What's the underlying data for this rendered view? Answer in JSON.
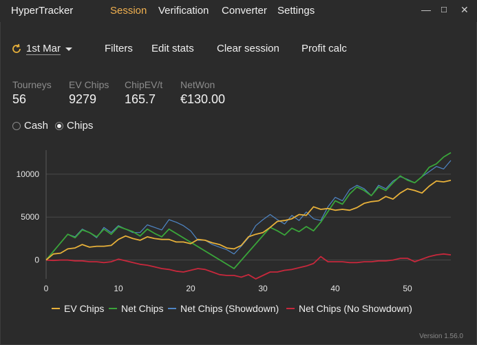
{
  "app": {
    "title": "HyperTracker",
    "version": "Version 1.56.0"
  },
  "menu": {
    "session": "Session",
    "verification": "Verification",
    "converter": "Converter",
    "settings": "Settings"
  },
  "window": {
    "minimize": "—",
    "maximize": "☐",
    "close": "✕"
  },
  "toolbar": {
    "date": "1st Mar",
    "filters": "Filters",
    "edit_stats": "Edit stats",
    "clear_session": "Clear session",
    "profit_calc": "Profit calc"
  },
  "stats": [
    {
      "label": "Tourneys",
      "value": "56"
    },
    {
      "label": "EV Chips",
      "value": "9279"
    },
    {
      "label": "ChipEV/t",
      "value": "165.7"
    },
    {
      "label": "NetWon",
      "value": "€130.00"
    }
  ],
  "mode": {
    "options": [
      "Cash",
      "Chips"
    ],
    "selected": "Chips"
  },
  "colors": {
    "ev": "#e8b13a",
    "net": "#3aa53a",
    "showdown": "#4f86c6",
    "noshowdown": "#c8283c",
    "accent": "#f0b050"
  },
  "chart_data": {
    "type": "line",
    "xlim": [
      0,
      56
    ],
    "ylim": [
      -2200,
      12800
    ],
    "xticks": [
      0,
      10,
      20,
      30,
      40,
      50
    ],
    "yticks": [
      0,
      5000,
      10000
    ],
    "ytick_labels": [
      "0",
      "5000",
      "10000"
    ],
    "grid": true,
    "legend_position": "bottom",
    "series": [
      {
        "name": "EV Chips",
        "color": "#e8b13a",
        "points": [
          [
            0,
            0
          ],
          [
            1,
            700
          ],
          [
            2,
            800
          ],
          [
            3,
            1300
          ],
          [
            4,
            1400
          ],
          [
            5,
            1800
          ],
          [
            6,
            1500
          ],
          [
            7,
            1600
          ],
          [
            8,
            1600
          ],
          [
            9,
            1700
          ],
          [
            10,
            2400
          ],
          [
            11,
            2800
          ],
          [
            12,
            2500
          ],
          [
            13,
            2300
          ],
          [
            14,
            2700
          ],
          [
            15,
            2500
          ],
          [
            16,
            2400
          ],
          [
            17,
            2400
          ],
          [
            18,
            2100
          ],
          [
            19,
            2100
          ],
          [
            20,
            1900
          ],
          [
            21,
            2400
          ],
          [
            22,
            2300
          ],
          [
            23,
            2000
          ],
          [
            24,
            1800
          ],
          [
            25,
            1400
          ],
          [
            26,
            1300
          ],
          [
            27,
            1700
          ],
          [
            28,
            2700
          ],
          [
            29,
            3000
          ],
          [
            30,
            3200
          ],
          [
            31,
            3800
          ],
          [
            32,
            4500
          ],
          [
            33,
            4600
          ],
          [
            34,
            4800
          ],
          [
            35,
            5300
          ],
          [
            36,
            5200
          ],
          [
            37,
            6200
          ],
          [
            38,
            5900
          ],
          [
            39,
            6000
          ],
          [
            40,
            5800
          ],
          [
            41,
            5900
          ],
          [
            42,
            5800
          ],
          [
            43,
            6100
          ],
          [
            44,
            6600
          ],
          [
            45,
            6800
          ],
          [
            46,
            6900
          ],
          [
            47,
            7400
          ],
          [
            48,
            7100
          ],
          [
            49,
            7800
          ],
          [
            50,
            8300
          ],
          [
            51,
            8100
          ],
          [
            52,
            7800
          ],
          [
            53,
            8600
          ],
          [
            54,
            9200
          ],
          [
            55,
            9100
          ],
          [
            56,
            9279
          ]
        ]
      },
      {
        "name": "Net Chips",
        "color": "#3aa53a",
        "points": [
          [
            0,
            0
          ],
          [
            3,
            3000
          ],
          [
            4,
            2600
          ],
          [
            5,
            3500
          ],
          [
            6,
            3200
          ],
          [
            7,
            2700
          ],
          [
            8,
            3600
          ],
          [
            9,
            3000
          ],
          [
            10,
            3900
          ],
          [
            12,
            3300
          ],
          [
            13,
            2800
          ],
          [
            14,
            3600
          ],
          [
            15,
            3100
          ],
          [
            16,
            2700
          ],
          [
            17,
            3600
          ],
          [
            26,
            -1000
          ],
          [
            31,
            3800
          ],
          [
            32,
            3400
          ],
          [
            33,
            2900
          ],
          [
            34,
            3700
          ],
          [
            35,
            3300
          ],
          [
            36,
            3900
          ],
          [
            37,
            3400
          ],
          [
            38,
            4400
          ],
          [
            40,
            6900
          ],
          [
            41,
            6500
          ],
          [
            42,
            7700
          ],
          [
            43,
            8500
          ],
          [
            44,
            8100
          ],
          [
            45,
            7500
          ],
          [
            46,
            8500
          ],
          [
            47,
            8100
          ],
          [
            48,
            9000
          ],
          [
            49,
            9800
          ],
          [
            50,
            9300
          ],
          [
            51,
            9000
          ],
          [
            52,
            9700
          ],
          [
            53,
            10800
          ],
          [
            54,
            11200
          ],
          [
            55,
            12000
          ],
          [
            56,
            12500
          ]
        ]
      },
      {
        "name": "Net Chips (Showdown)",
        "color": "#4f86c6",
        "points": [
          [
            0,
            0
          ],
          [
            3,
            3000
          ],
          [
            4,
            2700
          ],
          [
            5,
            3600
          ],
          [
            6,
            3200
          ],
          [
            7,
            2600
          ],
          [
            8,
            3800
          ],
          [
            9,
            3200
          ],
          [
            10,
            4000
          ],
          [
            11,
            3600
          ],
          [
            12,
            3200
          ],
          [
            13,
            3200
          ],
          [
            14,
            4100
          ],
          [
            15,
            3800
          ],
          [
            16,
            3500
          ],
          [
            17,
            4700
          ],
          [
            18,
            4400
          ],
          [
            19,
            4000
          ],
          [
            20,
            3400
          ],
          [
            21,
            2300
          ],
          [
            22,
            2300
          ],
          [
            23,
            1800
          ],
          [
            24,
            1500
          ],
          [
            25,
            1200
          ],
          [
            26,
            700
          ],
          [
            27,
            1600
          ],
          [
            28,
            2600
          ],
          [
            29,
            4000
          ],
          [
            30,
            4700
          ],
          [
            31,
            5300
          ],
          [
            32,
            4700
          ],
          [
            33,
            4200
          ],
          [
            34,
            5200
          ],
          [
            35,
            4600
          ],
          [
            36,
            5600
          ],
          [
            37,
            4800
          ],
          [
            38,
            4600
          ],
          [
            39,
            6200
          ],
          [
            40,
            7300
          ],
          [
            41,
            6900
          ],
          [
            42,
            8200
          ],
          [
            43,
            8700
          ],
          [
            44,
            8300
          ],
          [
            45,
            7500
          ],
          [
            46,
            8700
          ],
          [
            47,
            8300
          ],
          [
            48,
            9200
          ],
          [
            49,
            9700
          ],
          [
            50,
            9400
          ],
          [
            51,
            9000
          ],
          [
            52,
            9700
          ],
          [
            53,
            10300
          ],
          [
            54,
            10900
          ],
          [
            55,
            10600
          ],
          [
            56,
            11600
          ]
        ]
      },
      {
        "name": "Net Chips (No Showdown)",
        "color": "#c8283c",
        "points": [
          [
            0,
            0
          ],
          [
            1,
            -50
          ],
          [
            2,
            0
          ],
          [
            3,
            0
          ],
          [
            4,
            -100
          ],
          [
            5,
            -100
          ],
          [
            6,
            -200
          ],
          [
            7,
            -200
          ],
          [
            8,
            -300
          ],
          [
            9,
            -200
          ],
          [
            10,
            100
          ],
          [
            11,
            -100
          ],
          [
            12,
            -300
          ],
          [
            13,
            -500
          ],
          [
            14,
            -600
          ],
          [
            15,
            -800
          ],
          [
            16,
            -1000
          ],
          [
            17,
            -1100
          ],
          [
            18,
            -1300
          ],
          [
            19,
            -1400
          ],
          [
            20,
            -1200
          ],
          [
            21,
            -1000
          ],
          [
            22,
            -1100
          ],
          [
            23,
            -1400
          ],
          [
            24,
            -1700
          ],
          [
            25,
            -1800
          ],
          [
            26,
            -1800
          ],
          [
            27,
            -2000
          ],
          [
            28,
            -1700
          ],
          [
            29,
            -2200
          ],
          [
            30,
            -1800
          ],
          [
            31,
            -1400
          ],
          [
            32,
            -1400
          ],
          [
            33,
            -1200
          ],
          [
            34,
            -1100
          ],
          [
            35,
            -900
          ],
          [
            36,
            -700
          ],
          [
            37,
            -400
          ],
          [
            38,
            400
          ],
          [
            39,
            -200
          ],
          [
            40,
            -200
          ],
          [
            41,
            -200
          ],
          [
            42,
            -300
          ],
          [
            43,
            -300
          ],
          [
            44,
            -200
          ],
          [
            45,
            -200
          ],
          [
            46,
            -100
          ],
          [
            47,
            -100
          ],
          [
            48,
            0
          ],
          [
            49,
            200
          ],
          [
            50,
            200
          ],
          [
            51,
            -200
          ],
          [
            52,
            100
          ],
          [
            53,
            400
          ],
          [
            54,
            600
          ],
          [
            55,
            700
          ],
          [
            56,
            600
          ]
        ]
      }
    ]
  }
}
